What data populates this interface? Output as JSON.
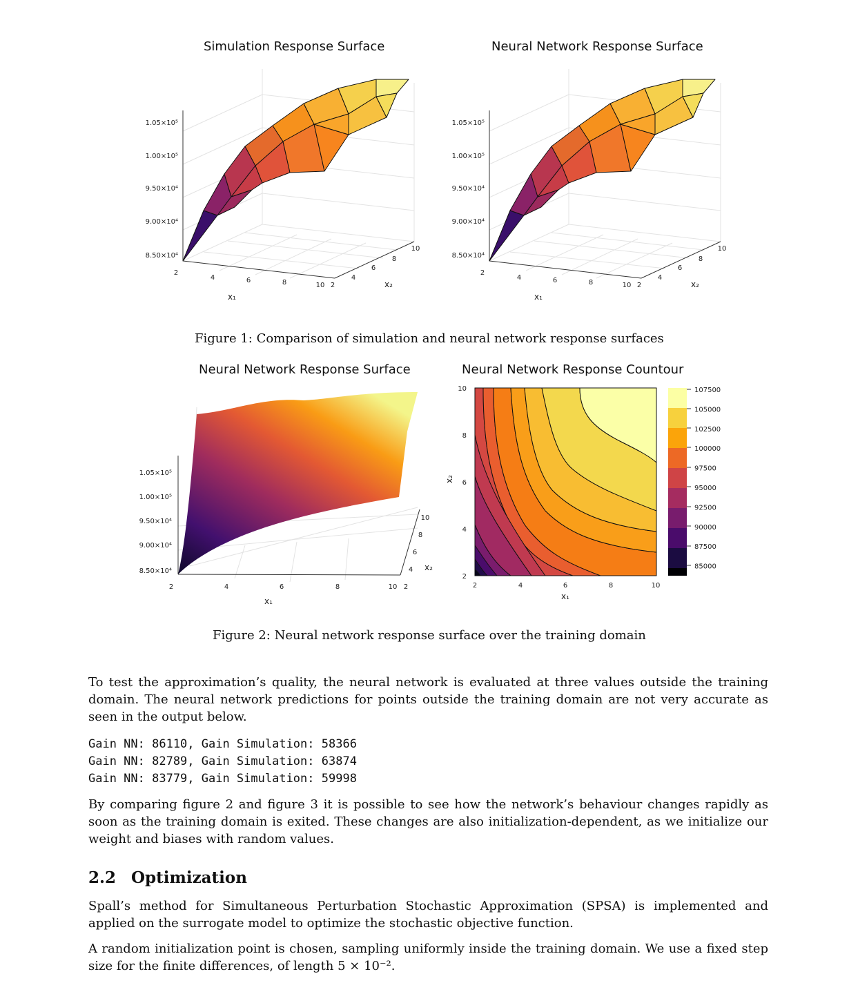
{
  "figure1": {
    "caption": "Figure 1: Comparison of simulation and neural network response surfaces",
    "plots": [
      {
        "title": "Simulation Response Surface"
      },
      {
        "title": "Neural Network Response Surface"
      }
    ]
  },
  "figure2": {
    "caption": "Figure 2: Neural network response surface over the training domain",
    "plots": [
      {
        "title": "Neural Network Response Surface"
      },
      {
        "title": "Neural Network Response Countour"
      }
    ]
  },
  "paragraphs": {
    "p1": "To test the approximation’s quality, the neural network is evaluated at three values outside the training domain. The neural network predictions for points outside the training domain are not very accurate as seen in the output below.",
    "p2": "By comparing figure 2 and figure 3 it is possible to see how the network’s behaviour changes rapidly as soon as the training domain is exited. These changes are also initialization-dependent, as we initialize our weight and biases with random values.",
    "p3": "Spall’s method for Simultaneous Perturbation Stochastic Approximation (SPSA) is implemented and applied on the surrogate model to optimize the stochastic objective function.",
    "p4": "A random initialization point is chosen, sampling uniformly inside the training domain. We use a fixed step size for the finite differences, of length 5 × 10⁻²."
  },
  "code_lines": [
    "Gain NN: 86110, Gain Simulation: 58366",
    "Gain NN: 82789, Gain Simulation: 63874",
    "Gain NN: 83779, Gain Simulation: 59998"
  ],
  "section": {
    "number": "2.2",
    "title": "Optimization"
  },
  "chart_data": [
    {
      "type": "surface",
      "title": "Simulation Response Surface",
      "xlabel": "x₁",
      "ylabel": "x₂",
      "xticks": [
        "2",
        "4",
        "6",
        "8",
        "10"
      ],
      "yticks": [
        "2",
        "4",
        "6",
        "8",
        "10"
      ],
      "zticks": [
        "8.50×10⁴",
        "9.00×10⁴",
        "9.50×10⁴",
        "1.00×10⁵",
        "1.05×10⁵"
      ],
      "zlim": [
        85000,
        107500
      ],
      "colormap": "inferno"
    },
    {
      "type": "surface",
      "title": "Neural Network Response Surface",
      "xlabel": "x₁",
      "ylabel": "x₂",
      "xticks": [
        "2",
        "4",
        "6",
        "8",
        "10"
      ],
      "yticks": [
        "2",
        "4",
        "6",
        "8",
        "10"
      ],
      "zticks": [
        "8.50×10⁴",
        "9.00×10⁴",
        "9.50×10⁴",
        "1.00×10⁵",
        "1.05×10⁵"
      ],
      "zlim": [
        85000,
        107500
      ],
      "colormap": "inferno"
    },
    {
      "type": "surface",
      "title": "Neural Network Response Surface",
      "xlabel": "x₁",
      "ylabel": "x₂",
      "xticks": [
        "2",
        "4",
        "6",
        "8",
        "10"
      ],
      "yticks": [
        "2",
        "4",
        "6",
        "8",
        "10"
      ],
      "zticks": [
        "8.50×10⁴",
        "9.00×10⁴",
        "9.50×10⁴",
        "1.00×10⁵",
        "1.05×10⁵"
      ],
      "zlim": [
        85000,
        107500
      ],
      "colormap": "inferno"
    },
    {
      "type": "heatmap",
      "subtype": "contour",
      "title": "Neural Network Response Countour",
      "xlabel": "x₁",
      "ylabel": "x₂",
      "xticks": [
        "2",
        "4",
        "6",
        "8",
        "10"
      ],
      "yticks": [
        "2",
        "4",
        "6",
        "8",
        "10"
      ],
      "xlim": [
        2,
        10
      ],
      "ylim": [
        2,
        10
      ],
      "levels": [
        85000,
        87500,
        90000,
        92500,
        95000,
        97500,
        100000,
        102500,
        105000,
        107500
      ],
      "colorbar_labels": [
        "107500",
        "105000",
        "102500",
        "100000",
        "97500",
        "95000",
        "92500",
        "90000",
        "87500",
        "85000"
      ],
      "colormap": "inferno"
    }
  ]
}
